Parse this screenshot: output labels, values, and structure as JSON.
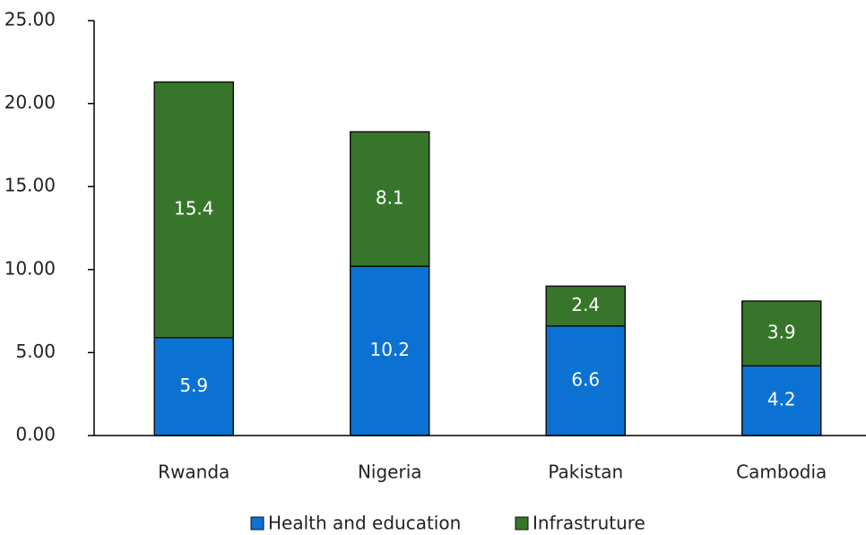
{
  "chart_data": {
    "type": "bar",
    "stacked": true,
    "categories": [
      "Rwanda",
      "Nigeria",
      "Pakistan",
      "Cambodia"
    ],
    "series": [
      {
        "name": "Health and education",
        "color": "#0b72d4",
        "values": [
          5.9,
          10.2,
          6.6,
          4.2
        ]
      },
      {
        "name": "Infrastruture",
        "color": "#37762a",
        "values": [
          15.4,
          8.1,
          2.4,
          3.9
        ]
      }
    ],
    "ylim": [
      0,
      25
    ],
    "yticks": [
      {
        "value": 0,
        "label": "0.00"
      },
      {
        "value": 5,
        "label": "5.00"
      },
      {
        "value": 10,
        "label": "10.00"
      },
      {
        "value": 15,
        "label": "15.00"
      },
      {
        "value": 20,
        "label": "20.00"
      },
      {
        "value": 25,
        "label": "25.00"
      }
    ],
    "legend": "bottom"
  }
}
